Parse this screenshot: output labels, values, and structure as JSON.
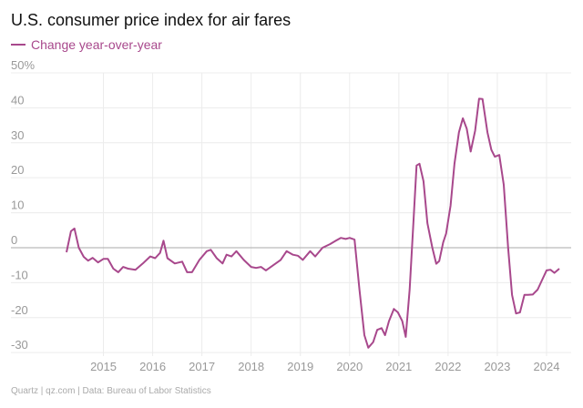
{
  "chart_data": {
    "type": "line",
    "title": "U.S. consumer price index for air fares",
    "source": "Quartz | qz.com | Data: Bureau of Labor Statistics",
    "x": [
      2014.25,
      2014.34,
      2014.41,
      2014.5,
      2014.6,
      2014.69,
      2014.78,
      2014.89,
      2015.0,
      2015.09,
      2015.2,
      2015.3,
      2015.4,
      2015.5,
      2015.65,
      2015.8,
      2015.95,
      2016.05,
      2016.15,
      2016.22,
      2016.3,
      2016.45,
      2016.6,
      2016.7,
      2016.8,
      2016.95,
      2017.1,
      2017.18,
      2017.3,
      2017.42,
      2017.5,
      2017.6,
      2017.7,
      2017.85,
      2018.0,
      2018.1,
      2018.2,
      2018.3,
      2018.45,
      2018.6,
      2018.72,
      2018.85,
      2018.95,
      2019.05,
      2019.2,
      2019.3,
      2019.45,
      2019.6,
      2019.72,
      2019.82,
      2019.92,
      2020.0,
      2020.1,
      2020.2,
      2020.3,
      2020.38,
      2020.48,
      2020.56,
      2020.65,
      2020.72,
      2020.8,
      2020.9,
      2020.98,
      2021.07,
      2021.14,
      2021.22,
      2021.3,
      2021.36,
      2021.42,
      2021.5,
      2021.58,
      2021.68,
      2021.76,
      2021.82,
      2021.9,
      2021.96,
      2022.05,
      2022.13,
      2022.22,
      2022.3,
      2022.38,
      2022.46,
      2022.55,
      2022.63,
      2022.7,
      2022.8,
      2022.88,
      2022.95,
      2023.04,
      2023.13,
      2023.22,
      2023.3,
      2023.38,
      2023.46,
      2023.55,
      2023.62,
      2023.72,
      2023.82,
      2023.9,
      2024.0,
      2024.08,
      2024.16,
      2024.26
    ],
    "series": [
      {
        "name": "Change year-over-year",
        "color": "#a8488c",
        "values": [
          -1.3,
          4.7,
          5.5,
          0,
          -2.6,
          -3.7,
          -2.9,
          -4.2,
          -3.2,
          -3.2,
          -6,
          -7,
          -5.5,
          -6,
          -6.3,
          -4.5,
          -2.5,
          -3,
          -1.5,
          2,
          -3,
          -4.5,
          -4,
          -7,
          -7,
          -3.5,
          -1,
          -0.6,
          -3,
          -4.5,
          -2,
          -2.5,
          -1,
          -3.5,
          -5.5,
          -5.8,
          -5.5,
          -6.5,
          -5,
          -3.5,
          -1,
          -2,
          -2.3,
          -3.5,
          -1,
          -2.5,
          0,
          1,
          2,
          2.8,
          2.5,
          2.8,
          2.3,
          -12,
          -25,
          -28.6,
          -27,
          -23.5,
          -23,
          -25,
          -21,
          -17.5,
          -18.5,
          -21,
          -25.5,
          -12,
          8,
          23.5,
          24,
          19,
          7,
          0,
          -4.6,
          -3.8,
          1.5,
          4,
          12,
          24,
          33,
          37,
          34,
          27.5,
          33.5,
          42.6,
          42.5,
          33,
          28,
          26,
          26.5,
          18,
          0,
          -13.5,
          -18.8,
          -18.5,
          -13.5,
          -13.5,
          -13.4,
          -12,
          -9.5,
          -6.5,
          -6.3,
          -7.2,
          -6
        ]
      }
    ],
    "xlim": [
      2014,
      2024.5
    ],
    "xticks": [
      2015,
      2016,
      2017,
      2018,
      2019,
      2020,
      2021,
      2022,
      2023,
      2024
    ],
    "ylim": [
      -31,
      50
    ],
    "yticks": [
      {
        "value": 50,
        "label": "50%"
      },
      40,
      30,
      20,
      10,
      0,
      -10,
      -20,
      -30
    ],
    "grid": true
  }
}
